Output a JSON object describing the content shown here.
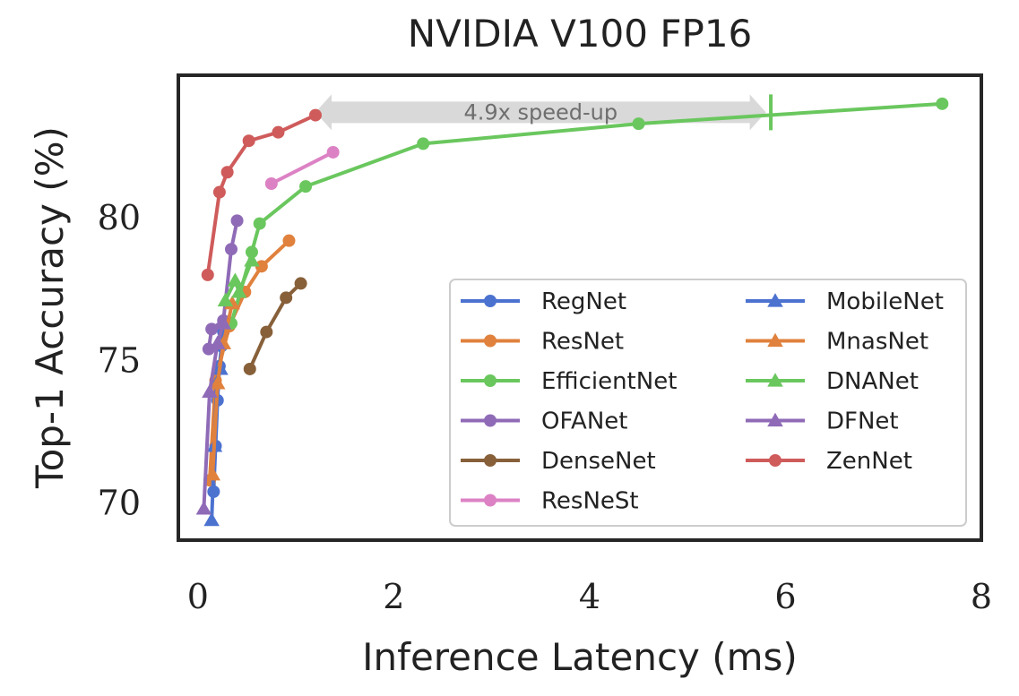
{
  "chart_data": {
    "type": "line",
    "title": "NVIDIA V100 FP16",
    "xlabel": "Inference Latency (ms)",
    "ylabel": "Top-1 Accuracy (%)",
    "xlim": [
      -0.2,
      8.0
    ],
    "ylim": [
      68.7,
      85.0
    ],
    "xticks": [
      0,
      2,
      4,
      6,
      8
    ],
    "xtick_labels": [
      "0",
      "2",
      "4",
      "6",
      "8"
    ],
    "yticks": [
      70,
      75,
      80
    ],
    "ytick_labels": [
      "70",
      "75",
      "80"
    ],
    "grid": false,
    "legend": {
      "position": "bottom-right",
      "columns": 2
    },
    "annotation": {
      "text": "4.9x speed-up",
      "from": [
        1.2,
        83.7
      ],
      "to": [
        5.8,
        83.7
      ],
      "marker_x": 5.85
    },
    "series": [
      {
        "name": "RegNet",
        "marker": "circle",
        "color": "#4c72d0",
        "x": [
          0.16,
          0.18,
          0.2,
          0.22,
          0.24,
          0.26
        ],
        "y": [
          70.4,
          72.0,
          73.6,
          74.8,
          75.5,
          76.0
        ]
      },
      {
        "name": "ResNet",
        "marker": "circle",
        "color": "#e0813d",
        "x": [
          0.12,
          0.18,
          0.32,
          0.48,
          0.65,
          0.93
        ],
        "y": [
          70.8,
          74.3,
          76.2,
          77.4,
          78.3,
          79.2
        ]
      },
      {
        "name": "EfficientNet",
        "marker": "circle",
        "color": "#6ac75e",
        "x": [
          0.34,
          0.55,
          0.63,
          1.1,
          2.3,
          4.5,
          7.6
        ],
        "y": [
          76.3,
          78.8,
          79.8,
          81.1,
          82.6,
          83.3,
          84.0
        ]
      },
      {
        "name": "OFANet",
        "marker": "circle",
        "color": "#8f6bb7",
        "x": [
          0.11,
          0.14,
          0.26,
          0.34,
          0.4
        ],
        "y": [
          75.4,
          76.1,
          76.4,
          78.9,
          79.9
        ]
      },
      {
        "name": "DenseNet",
        "marker": "circle",
        "color": "#87603a",
        "x": [
          0.53,
          0.7,
          0.9,
          1.05
        ],
        "y": [
          74.7,
          76.0,
          77.2,
          77.7
        ]
      },
      {
        "name": "ResNeSt",
        "marker": "circle",
        "color": "#dc82c4",
        "x": [
          0.75,
          1.38
        ],
        "y": [
          81.2,
          82.3
        ]
      },
      {
        "name": "MobileNet",
        "marker": "triangle",
        "color": "#4c72d0",
        "x": [
          0.14,
          0.17,
          0.19,
          0.23
        ],
        "y": [
          69.4,
          72.0,
          74.2,
          74.7
        ]
      },
      {
        "name": "MnasNet",
        "marker": "triangle",
        "color": "#e0813d",
        "x": [
          0.15,
          0.2,
          0.26,
          0.35
        ],
        "y": [
          71.0,
          74.2,
          75.6,
          77.0
        ]
      },
      {
        "name": "DNANet",
        "marker": "triangle",
        "color": "#6ac75e",
        "x": [
          0.28,
          0.38,
          0.42,
          0.55
        ],
        "y": [
          77.1,
          77.8,
          77.4,
          78.5
        ]
      },
      {
        "name": "DFNet",
        "marker": "triangle",
        "color": "#8f6bb7",
        "x": [
          0.06,
          0.12,
          0.2,
          0.26
        ],
        "y": [
          69.8,
          73.9,
          75.6,
          76.3
        ]
      },
      {
        "name": "ZenNet",
        "marker": "circle",
        "color": "#cf5b5b",
        "x": [
          0.1,
          0.22,
          0.3,
          0.52,
          0.82,
          1.2
        ],
        "y": [
          78.0,
          80.9,
          81.6,
          82.7,
          83.0,
          83.6
        ]
      }
    ]
  }
}
